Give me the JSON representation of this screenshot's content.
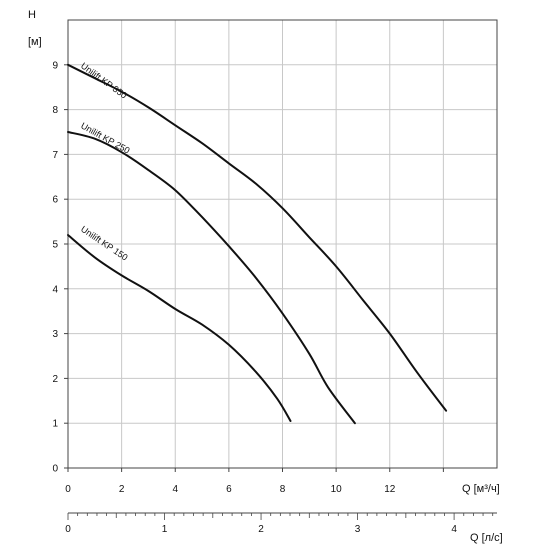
{
  "chart_data": {
    "type": "line",
    "y_axis": {
      "label_line1": "H",
      "label_line2": "[м]",
      "min": 0,
      "max": 10,
      "ticks": [
        0,
        1,
        2,
        3,
        4,
        5,
        6,
        7,
        8,
        9
      ]
    },
    "x_axis_primary": {
      "label": "Q [м³/ч]",
      "min": 0,
      "max": 16,
      "ticks": [
        0,
        2,
        4,
        6,
        8,
        10,
        12
      ]
    },
    "x_axis_secondary": {
      "label": "Q [л/с]",
      "min": 0,
      "max": 4.444,
      "ticks": [
        0,
        1,
        2,
        3,
        4
      ]
    },
    "grid": true,
    "series": [
      {
        "name": "Unilift KP 350",
        "x": [
          0,
          1,
          2,
          3,
          4,
          5,
          6,
          7,
          8,
          9,
          10,
          11,
          12,
          13,
          14.1
        ],
        "y": [
          9.0,
          8.7,
          8.4,
          8.05,
          7.65,
          7.25,
          6.8,
          6.35,
          5.8,
          5.15,
          4.5,
          3.75,
          3.0,
          2.15,
          1.28
        ]
      },
      {
        "name": "Unilift KP 250",
        "x": [
          0,
          1,
          2,
          3,
          4,
          5,
          6,
          7,
          8,
          9,
          9.7,
          10.7
        ],
        "y": [
          7.5,
          7.35,
          7.05,
          6.65,
          6.2,
          5.6,
          4.95,
          4.25,
          3.45,
          2.55,
          1.8,
          1.0
        ]
      },
      {
        "name": "Unilift KP 150",
        "x": [
          0,
          1,
          2,
          3,
          4,
          5,
          6,
          7,
          7.8,
          8.3
        ],
        "y": [
          5.2,
          4.7,
          4.3,
          3.95,
          3.55,
          3.2,
          2.75,
          2.15,
          1.55,
          1.05
        ]
      }
    ]
  }
}
